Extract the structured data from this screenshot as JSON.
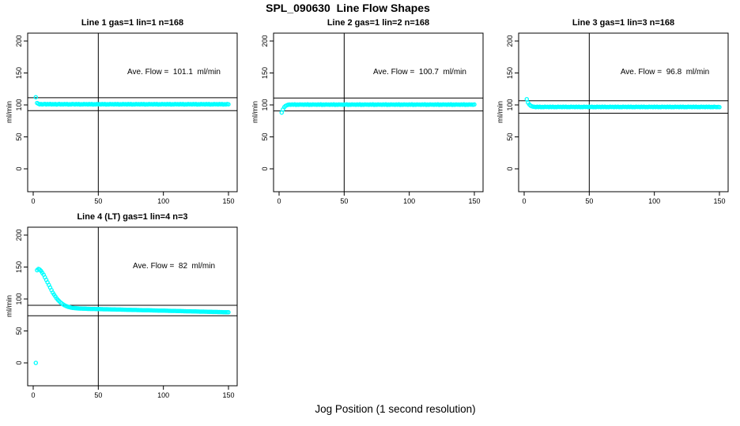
{
  "figure": {
    "title": "SPL_090630  Line Flow Shapes",
    "xlabel": "Jog Position (1 second resolution)",
    "background": "#ffffff",
    "axis_color": "#000000",
    "marker_color": "#00ffff"
  },
  "chart_data": [
    {
      "type": "scatter",
      "title": "Line 1 gas=1 lin=1 n=168",
      "annotation": "Ave. Flow =  101.1  ml/min",
      "ave_flow_ml_min": 101.1,
      "n": 168,
      "ylabel": "ml/min",
      "xlim": [
        0,
        150
      ],
      "ylim": [
        0,
        200
      ],
      "xticks": [
        0,
        50,
        100,
        150
      ],
      "yticks": [
        0,
        50,
        100,
        150,
        200
      ],
      "vline_x": 50,
      "hlines": [
        111.2,
        91.0
      ],
      "x_start": 2,
      "x_step": 1,
      "y": [
        112,
        103,
        101.8,
        100.9,
        101.4,
        100.7,
        101.2,
        101.6,
        100.8,
        101.3,
        101.0,
        101.5,
        100.7,
        101.2,
        100.9,
        101.4,
        100.6,
        101.1,
        101.5,
        100.8,
        101.2,
        100.7,
        101.3,
        101.0,
        101.4,
        100.6,
        101.1,
        100.8,
        101.3,
        101.2,
        100.7,
        101.3,
        100.9,
        101.4,
        100.6,
        101.1,
        100.8,
        101.3,
        101.0,
        101.2,
        100.7,
        101.3,
        100.9,
        101.4,
        100.6,
        101.1,
        100.8,
        101.3,
        101.0,
        101.2,
        100.7,
        101.3,
        100.9,
        101.4,
        100.6,
        101.1,
        100.8,
        101.3,
        101.0,
        101.2,
        100.7,
        101.3,
        100.9,
        101.4,
        100.6,
        101.1,
        100.8,
        101.3,
        101.0,
        101.2,
        100.7,
        101.3,
        100.9,
        101.4,
        100.6,
        101.1,
        100.8,
        101.3,
        101.0,
        101.2,
        100.7,
        101.3,
        100.9,
        101.4,
        100.6,
        101.1,
        100.8,
        101.3,
        101.0,
        101.2,
        100.7,
        101.3,
        100.9,
        101.4,
        100.6,
        101.1,
        100.8,
        101.3,
        101.0,
        101.2,
        100.7,
        101.3,
        100.9,
        101.4,
        100.6,
        101.1,
        100.8,
        101.3,
        101.0,
        101.2,
        100.7,
        101.3,
        100.9,
        101.4,
        100.6,
        101.1,
        100.8,
        101.3,
        101.0,
        101.2,
        100.7,
        101.3,
        100.9,
        101.4,
        100.6,
        101.1,
        100.8,
        101.3,
        101.0,
        101.2,
        100.7,
        101.3,
        100.9,
        101.4,
        100.6,
        101.1,
        100.8,
        101.3,
        101.0,
        101.2,
        100.7,
        101.3,
        100.9,
        101.4,
        100.6,
        101.1,
        100.8,
        101.3,
        101.0
      ]
    },
    {
      "type": "scatter",
      "title": "Line 2 gas=1 lin=2 n=168",
      "annotation": "Ave. Flow =  100.7  ml/min",
      "ave_flow_ml_min": 100.7,
      "n": 168,
      "ylabel": "ml/min",
      "xlim": [
        0,
        150
      ],
      "ylim": [
        0,
        200
      ],
      "xticks": [
        0,
        50,
        100,
        150
      ],
      "yticks": [
        0,
        50,
        100,
        150,
        200
      ],
      "vline_x": 50,
      "hlines": [
        110.8,
        90.6
      ],
      "x_start": 2,
      "x_step": 1,
      "y": [
        88,
        93,
        96.5,
        98.5,
        99.5,
        100.2,
        100.6,
        100.2,
        100.8,
        100.4,
        100.9,
        100.1,
        100.6,
        100.3,
        100.8,
        100.5,
        100.6,
        100.2,
        100.8,
        100.4,
        100.9,
        100.1,
        100.6,
        100.3,
        100.8,
        100.5,
        100.6,
        100.2,
        100.8,
        100.4,
        100.9,
        100.1,
        100.6,
        100.3,
        100.8,
        100.5,
        100.6,
        100.2,
        100.8,
        100.4,
        100.9,
        100.1,
        100.6,
        100.3,
        100.8,
        100.5,
        100.6,
        100.2,
        100.8,
        100.4,
        100.9,
        100.1,
        100.6,
        100.3,
        100.8,
        100.5,
        100.6,
        100.2,
        100.8,
        100.4,
        100.9,
        100.1,
        100.6,
        100.3,
        100.8,
        100.5,
        100.6,
        100.2,
        100.8,
        100.4,
        100.9,
        100.1,
        100.6,
        100.3,
        100.8,
        100.5,
        100.6,
        100.2,
        100.8,
        100.4,
        100.9,
        100.1,
        100.6,
        100.3,
        100.8,
        100.5,
        100.6,
        100.2,
        100.8,
        100.4,
        100.9,
        100.1,
        100.6,
        100.3,
        100.8,
        100.5,
        100.6,
        100.2,
        100.8,
        100.4,
        100.9,
        100.1,
        100.6,
        100.3,
        100.8,
        100.5,
        100.6,
        100.2,
        100.8,
        100.4,
        100.9,
        100.1,
        100.6,
        100.3,
        100.8,
        100.5,
        100.6,
        100.2,
        100.8,
        100.4,
        100.9,
        100.1,
        100.6,
        100.3,
        100.8,
        100.5,
        100.6,
        100.2,
        100.8,
        100.4,
        100.9,
        100.1,
        100.6,
        100.3,
        100.8,
        100.5,
        100.6,
        100.2,
        100.8,
        100.4,
        100.9,
        100.1,
        100.6,
        100.3,
        100.8,
        100.5,
        100.6,
        100.2,
        100.7
      ]
    },
    {
      "type": "scatter",
      "title": "Line 3 gas=1 lin=3 n=168",
      "annotation": "Ave. Flow =  96.8  ml/min",
      "ave_flow_ml_min": 96.8,
      "n": 168,
      "ylabel": "ml/min",
      "xlim": [
        0,
        150
      ],
      "ylim": [
        0,
        200
      ],
      "xticks": [
        0,
        50,
        100,
        150
      ],
      "yticks": [
        0,
        50,
        100,
        150,
        200
      ],
      "vline_x": 50,
      "hlines": [
        106.5,
        87.1
      ],
      "x_start": 2,
      "x_step": 1,
      "y": [
        109,
        103.5,
        100.5,
        98.8,
        97.8,
        97.2,
        97.0,
        96.6,
        97.1,
        96.7,
        97.2,
        96.5,
        96.9,
        96.6,
        97.1,
        96.8,
        97.0,
        96.6,
        97.1,
        96.7,
        97.2,
        96.5,
        96.9,
        96.6,
        97.1,
        96.8,
        97.0,
        96.6,
        97.1,
        96.7,
        97.2,
        96.5,
        96.9,
        96.6,
        97.1,
        96.8,
        97.0,
        96.6,
        97.1,
        96.7,
        97.2,
        96.5,
        96.9,
        96.6,
        97.1,
        96.8,
        97.0,
        96.6,
        97.1,
        96.7,
        97.2,
        96.5,
        96.9,
        96.6,
        97.1,
        96.8,
        97.0,
        96.6,
        97.1,
        96.7,
        97.2,
        96.5,
        96.9,
        96.6,
        97.1,
        96.8,
        97.0,
        96.6,
        97.1,
        96.7,
        97.2,
        96.5,
        96.9,
        96.6,
        97.1,
        96.8,
        97.0,
        96.6,
        97.1,
        96.7,
        97.2,
        96.5,
        96.9,
        96.6,
        97.1,
        96.8,
        97.0,
        96.6,
        97.1,
        96.7,
        97.2,
        96.5,
        96.9,
        96.6,
        97.1,
        96.8,
        97.0,
        96.6,
        97.1,
        96.7,
        97.2,
        96.5,
        96.9,
        96.6,
        97.1,
        96.8,
        97.0,
        96.6,
        97.1,
        96.7,
        97.2,
        96.5,
        96.9,
        96.6,
        97.1,
        96.8,
        97.0,
        96.6,
        97.1,
        96.7,
        97.2,
        96.5,
        96.9,
        96.6,
        97.1,
        96.8,
        97.0,
        96.6,
        97.1,
        96.7,
        97.2,
        96.5,
        96.9,
        96.6,
        97.1,
        96.8,
        97.0,
        96.6,
        97.1,
        96.7,
        97.2,
        96.5,
        96.9,
        96.6,
        97.1,
        96.8,
        96.6,
        96.9,
        96.5
      ]
    },
    {
      "type": "scatter",
      "title": "Line 4 (LT) gas=1 lin=4 n=3",
      "annotation": "Ave. Flow =  82  ml/min",
      "ave_flow_ml_min": 82,
      "n": 3,
      "ylabel": "ml/min",
      "xlim": [
        0,
        150
      ],
      "ylim": [
        0,
        200
      ],
      "xticks": [
        0,
        50,
        100,
        150
      ],
      "yticks": [
        0,
        50,
        100,
        150,
        200
      ],
      "vline_x": 50,
      "hlines": [
        90.2,
        73.8
      ],
      "x_start": 2,
      "x_step": 1,
      "y": [
        0,
        145,
        147,
        146,
        144,
        141,
        138,
        134,
        130,
        126,
        122,
        118,
        114,
        110,
        107,
        104,
        101,
        98.5,
        96.5,
        94.5,
        93,
        91.5,
        90.3,
        89.3,
        88.4,
        87.7,
        87.1,
        86.6,
        86.2,
        85.9,
        85.7,
        85.5,
        85.3,
        85.2,
        85.1,
        85.0,
        84.9,
        84.8,
        84.8,
        84.7,
        84.6,
        84.6,
        84.5,
        84.5,
        84.4,
        84.4,
        84.3,
        84.3,
        84.2,
        84.2,
        84.1,
        84.1,
        84.0,
        84.0,
        83.9,
        83.9,
        83.8,
        83.8,
        83.7,
        83.7,
        83.6,
        83.6,
        83.5,
        83.5,
        83.4,
        83.4,
        83.3,
        83.3,
        83.2,
        83.2,
        83.1,
        83.1,
        83.0,
        83.0,
        82.9,
        82.9,
        82.8,
        82.8,
        82.7,
        82.7,
        82.6,
        82.6,
        82.5,
        82.5,
        82.4,
        82.4,
        82.3,
        82.3,
        82.2,
        82.2,
        82.1,
        82.1,
        82.0,
        82.0,
        81.9,
        81.9,
        81.8,
        81.8,
        81.7,
        81.7,
        81.6,
        81.6,
        81.5,
        81.5,
        81.4,
        81.4,
        81.3,
        81.3,
        81.2,
        81.2,
        81.1,
        81.1,
        81.0,
        81.0,
        80.9,
        80.9,
        80.8,
        80.8,
        80.7,
        80.7,
        80.6,
        80.6,
        80.5,
        80.5,
        80.4,
        80.4,
        80.3,
        80.3,
        80.2,
        80.2,
        80.1,
        80.1,
        80.0,
        80.0,
        79.9,
        79.9,
        79.8,
        79.8,
        79.7,
        79.7,
        79.6,
        79.6,
        79.5,
        79.5,
        79.4,
        79.4,
        79.3,
        79.3,
        79.2
      ]
    }
  ]
}
